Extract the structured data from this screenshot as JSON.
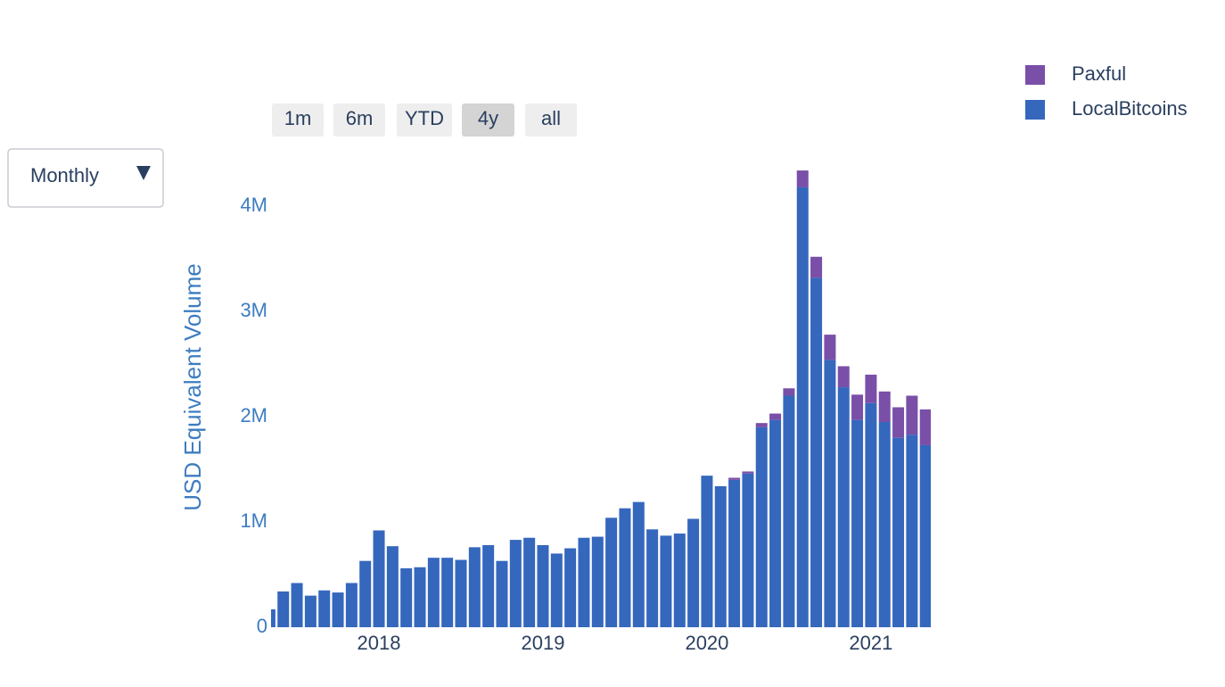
{
  "chart_data": {
    "type": "bar",
    "stacked": true,
    "y_label": "USD Equivalent Volume",
    "dropdown": {
      "label": "Monthly"
    },
    "range_buttons": [
      {
        "label": "1m",
        "active": false
      },
      {
        "label": "6m",
        "active": false
      },
      {
        "label": "YTD",
        "active": false
      },
      {
        "label": "4y",
        "active": true
      },
      {
        "label": "all",
        "active": false
      }
    ],
    "x": [
      "2017-05",
      "2017-06",
      "2017-07",
      "2017-08",
      "2017-09",
      "2017-10",
      "2017-11",
      "2017-12",
      "2018-01",
      "2018-02",
      "2018-03",
      "2018-04",
      "2018-05",
      "2018-06",
      "2018-07",
      "2018-08",
      "2018-09",
      "2018-10",
      "2018-11",
      "2018-12",
      "2019-01",
      "2019-02",
      "2019-03",
      "2019-04",
      "2019-05",
      "2019-06",
      "2019-07",
      "2019-08",
      "2019-09",
      "2019-10",
      "2019-11",
      "2019-12",
      "2020-01",
      "2020-02",
      "2020-03",
      "2020-04",
      "2020-05",
      "2020-06",
      "2020-07",
      "2020-08",
      "2020-09",
      "2020-10",
      "2020-11",
      "2020-12",
      "2021-01",
      "2021-02",
      "2021-03",
      "2021-04",
      "2021-05"
    ],
    "series": [
      {
        "name": "Paxful",
        "color": "#7a4fa8",
        "values": [
          0,
          0,
          0,
          0,
          0,
          0,
          0,
          0,
          0,
          0,
          0,
          0,
          0,
          0,
          0,
          0,
          0,
          0,
          0,
          0,
          0,
          0,
          0,
          0,
          0,
          0,
          0,
          0,
          0,
          0,
          0,
          0,
          0,
          0,
          20000,
          20000,
          40000,
          60000,
          70000,
          160000,
          200000,
          240000,
          200000,
          240000,
          270000,
          290000,
          290000,
          370000,
          340000
        ]
      },
      {
        "name": "LocalBitcoins",
        "color": "#3567bd",
        "values": [
          170000,
          340000,
          420000,
          300000,
          350000,
          330000,
          420000,
          630000,
          920000,
          770000,
          560000,
          570000,
          660000,
          660000,
          640000,
          760000,
          780000,
          630000,
          830000,
          850000,
          780000,
          700000,
          750000,
          850000,
          860000,
          1040000,
          1130000,
          1190000,
          930000,
          870000,
          890000,
          1030000,
          1440000,
          1340000,
          1400000,
          1460000,
          1900000,
          1970000,
          2200000,
          4180000,
          3320000,
          2540000,
          2280000,
          1970000,
          2130000,
          1950000,
          1800000,
          1830000,
          1730000
        ]
      }
    ],
    "xlim": [
      "2017-05",
      "2021-05"
    ],
    "xticks": [
      {
        "value": "2018-01",
        "label": "2018"
      },
      {
        "value": "2019-01",
        "label": "2019"
      },
      {
        "value": "2020-01",
        "label": "2020"
      },
      {
        "value": "2021-01",
        "label": "2021"
      }
    ],
    "ylim": [
      0,
      4400000
    ],
    "yticks": [
      0,
      {
        "value": 1000000,
        "label": "1M"
      },
      {
        "value": 2000000,
        "label": "2M"
      },
      {
        "value": 3000000,
        "label": "3M"
      },
      {
        "value": 4000000,
        "label": "4M"
      }
    ],
    "grid": false,
    "legend": "top-right"
  }
}
